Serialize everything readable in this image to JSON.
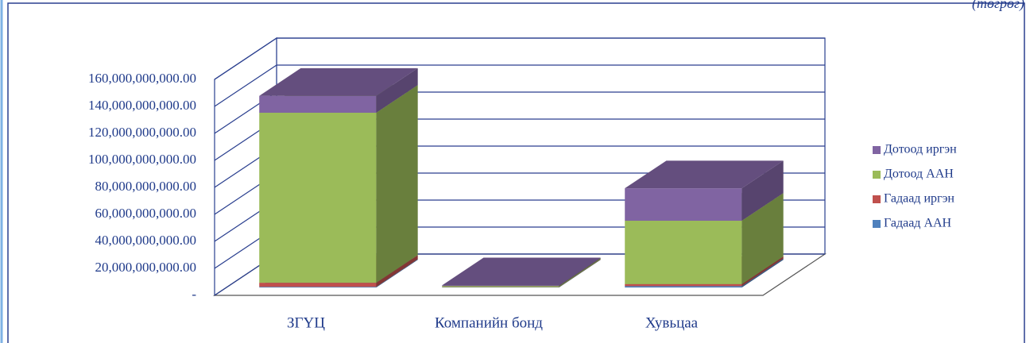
{
  "chart_data": {
    "type": "bar3d_stacked",
    "unit_label": "(төгрөг)",
    "categories": [
      "ЗГҮЦ",
      "Компанийн бонд",
      "Хувьцаа"
    ],
    "series": [
      {
        "name": "Гадаад ААН",
        "color": "#4f81bd",
        "values": [
          500000000,
          200000000,
          1000000000
        ]
      },
      {
        "name": "Гадаад иргэн",
        "color": "#c0504d",
        "values": [
          3000000000,
          100000000,
          1500000000
        ]
      },
      {
        "name": "Дотоод ААН",
        "color": "#9bbb59",
        "values": [
          126000000000,
          800000000,
          47000000000
        ]
      },
      {
        "name": "Дотоод иргэн",
        "color": "#8064a2",
        "values": [
          12500000000,
          500000000,
          24000000000
        ]
      }
    ],
    "ylim": [
      0,
      160000000000
    ],
    "yticks": [
      {
        "value": 0,
        "label": "-"
      },
      {
        "value": 20000000000,
        "label": "20,000,000,000.00"
      },
      {
        "value": 40000000000,
        "label": "40,000,000,000.00"
      },
      {
        "value": 60000000000,
        "label": "60,000,000,000.00"
      },
      {
        "value": 80000000000,
        "label": "80,000,000,000.00"
      },
      {
        "value": 100000000000,
        "label": "100,000,000,000.00"
      },
      {
        "value": 120000000000,
        "label": "120,000,000,000.00"
      },
      {
        "value": 140000000000,
        "label": "140,000,000,000.00"
      },
      {
        "value": 160000000000,
        "label": "160,000,000,000.00"
      }
    ],
    "grid": true,
    "legend": "right"
  }
}
